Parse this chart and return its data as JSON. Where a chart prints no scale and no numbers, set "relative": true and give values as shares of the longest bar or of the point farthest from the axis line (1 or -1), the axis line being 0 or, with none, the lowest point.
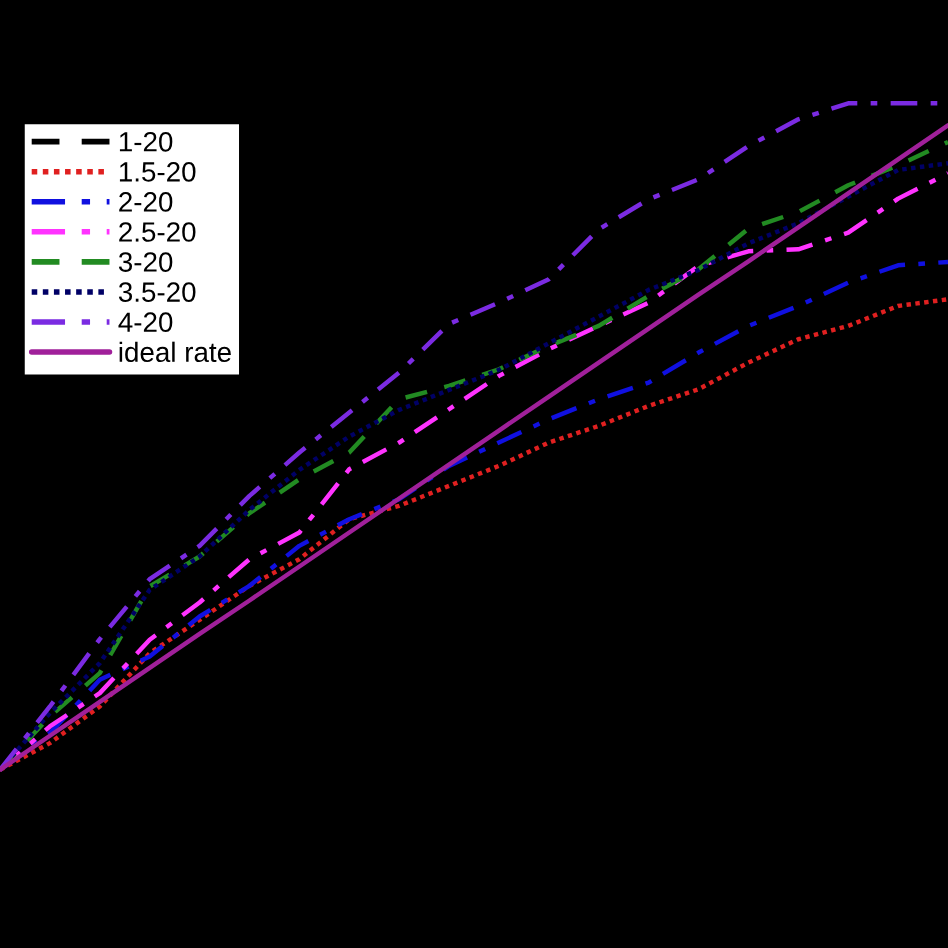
{
  "chart_data": {
    "type": "line",
    "relative": true,
    "legend": "top left",
    "marker": "none",
    "categories": [
      null,
      null,
      null,
      null,
      null,
      null,
      null,
      null,
      null,
      null,
      null,
      null,
      null,
      null,
      null,
      null,
      null,
      null,
      null,
      null
    ],
    "series": [
      {
        "name": "1-20",
        "color": "#000000",
        "line_style": "dashed",
        "values": [
          null,
          null,
          null,
          null,
          null,
          null,
          null,
          null,
          null,
          null,
          null,
          null,
          null,
          null,
          null,
          null,
          null,
          null,
          null,
          null
        ]
      },
      {
        "name": "1.5-20",
        "color": "#e02020",
        "line_style": "dotted",
        "values": [
          0,
          0.04,
          0.095,
          0.175,
          0.225,
          0.276,
          0.316,
          0.376,
          0.396,
          0.426,
          0.456,
          0.491,
          0.516,
          0.546,
          0.571,
          0.611,
          0.646,
          0.666,
          0.696,
          0.706
        ]
      },
      {
        "name": "2-20",
        "color": "#1010e0",
        "line_style": "dashdot",
        "values": [
          0,
          0.055,
          0.135,
          0.17,
          0.23,
          0.276,
          0.336,
          0.376,
          0.406,
          0.456,
          0.491,
          0.526,
          0.556,
          0.581,
          0.626,
          0.666,
          0.696,
          0.731,
          0.757,
          0.762
        ]
      },
      {
        "name": "2.5-20",
        "color": "#ff33ff",
        "line_style": "dashdot",
        "values": [
          0,
          0.065,
          0.115,
          0.195,
          0.251,
          0.316,
          0.356,
          0.451,
          0.491,
          0.541,
          0.591,
          0.631,
          0.666,
          0.701,
          0.756,
          0.778,
          0.781,
          0.806,
          0.857,
          0.895
        ]
      },
      {
        "name": "3-20",
        "color": "#228b22",
        "line_style": "dashed",
        "values": [
          0,
          0.08,
          0.145,
          0.275,
          0.32,
          0.385,
          0.436,
          0.476,
          0.556,
          0.576,
          0.601,
          0.636,
          0.666,
          0.711,
          0.751,
          0.812,
          0.837,
          0.877,
          0.907,
          0.942
        ]
      },
      {
        "name": "3.5-20",
        "color": "#000066",
        "line_style": "dotted",
        "values": [
          0,
          0.085,
          0.16,
          0.27,
          0.32,
          0.39,
          0.45,
          0.5,
          0.54,
          0.57,
          0.6,
          0.64,
          0.68,
          0.72,
          0.75,
          0.79,
          0.82,
          0.86,
          0.9,
          0.91
        ]
      },
      {
        "name": "4-20",
        "color": "#7b2be2",
        "line_style": "dashdot",
        "values": [
          0,
          0.095,
          0.196,
          0.286,
          0.336,
          0.411,
          0.476,
          0.536,
          0.596,
          0.669,
          0.701,
          0.736,
          0.811,
          0.856,
          0.886,
          0.936,
          0.976,
          1,
          1,
          1
        ]
      },
      {
        "name": "ideal rate",
        "color": "#a0209a",
        "line_style": "solid",
        "values": [
          0,
          0.051,
          0.102,
          0.153,
          0.204,
          0.254,
          0.305,
          0.356,
          0.407,
          0.458,
          0.509,
          0.56,
          0.611,
          0.662,
          0.713,
          0.763,
          0.814,
          0.865,
          0.916,
          0.967
        ]
      }
    ]
  }
}
